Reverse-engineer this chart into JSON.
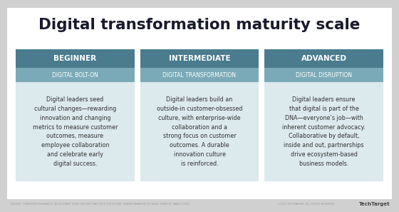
{
  "title": "Digital transformation maturity scale",
  "card_bg": "#ffffff",
  "outer_bg": "#d0d0d0",
  "columns": [
    {
      "header": "BEGINNER",
      "header_bg": "#4a7c8e",
      "subheader": "DIGITAL BOLT-ON",
      "subheader_bg": "#7aaab8",
      "body": "Digital leaders seed\ncultural changes—rewarding\ninnovation and changing\nmetrics to measure customer\noutcomes, measure\nemployee collaboration\nand celebrate early\ndigital success."
    },
    {
      "header": "INTERMEDIATE",
      "header_bg": "#4a7c8e",
      "subheader": "DIGITAL TRANSFORMATION",
      "subheader_bg": "#7aaab8",
      "body": "Digital leaders build an\noutside-in customer-obsessed\nculture, with enterprise-wide\ncollaboration and a\nstrong focus on customer\noutcomes. A durable\ninnovation culture\nis reinforced."
    },
    {
      "header": "ADVANCED",
      "header_bg": "#4a7c8e",
      "subheader": "DIGITAL DISRUPTION",
      "subheader_bg": "#7aaab8",
      "body": "Digital leaders ensure\nthat digital is part of the\nDNA—everyone’s job—with\ninherent customer advocacy.\nCollaborative by default,\ninside and out, partnerships\ndrive ecosystem-based\nbusiness models."
    }
  ],
  "footer_left": "SOURCE: FORRESTER RESEARCH, ‘ACCELERATE YOUR CULTURE PRACTICES FOR DIGITAL TRANSFORMATION’ BY NIGEL FENWICK, MARCH 2016",
  "footer_right": "©2017 TECHTARGET. ALL RIGHTS RESERVED.",
  "footer_logo": "TechTarget",
  "title_color": "#1a1a2e",
  "header_text_color": "#ffffff",
  "subheader_text_color": "#ffffff",
  "body_text_color": "#333333",
  "footer_text_color": "#999999",
  "card_body_bg": "#dce9ed"
}
